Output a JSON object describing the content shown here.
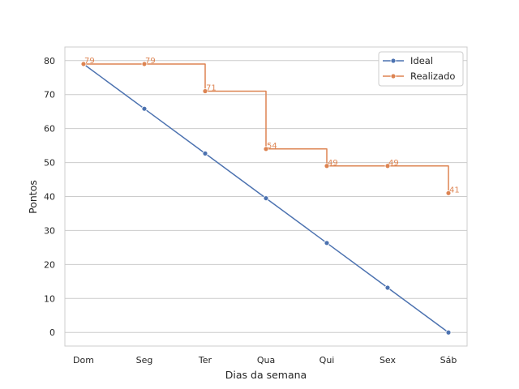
{
  "chart_data": {
    "type": "line",
    "title": "",
    "xlabel": "Dias da semana",
    "ylabel": "Pontos",
    "categories": [
      "Dom",
      "Seg",
      "Ter",
      "Qua",
      "Qui",
      "Sex",
      "Sáb"
    ],
    "ylim": [
      -4,
      84
    ],
    "yticks": [
      0,
      10,
      20,
      30,
      40,
      50,
      60,
      70,
      80
    ],
    "grid": "horizontal",
    "legend_position": "top-right",
    "series": [
      {
        "name": "Ideal",
        "color": "#4c72b0",
        "style": "line",
        "values": [
          79,
          65.83,
          52.67,
          39.5,
          26.33,
          13.17,
          0
        ]
      },
      {
        "name": "Realizado",
        "color": "#dd8452",
        "style": "step-post",
        "values": [
          79,
          79,
          71,
          54,
          49,
          49,
          41
        ],
        "labels": [
          "79",
          "79",
          "71",
          "54",
          "49",
          "49",
          "41"
        ]
      }
    ]
  }
}
